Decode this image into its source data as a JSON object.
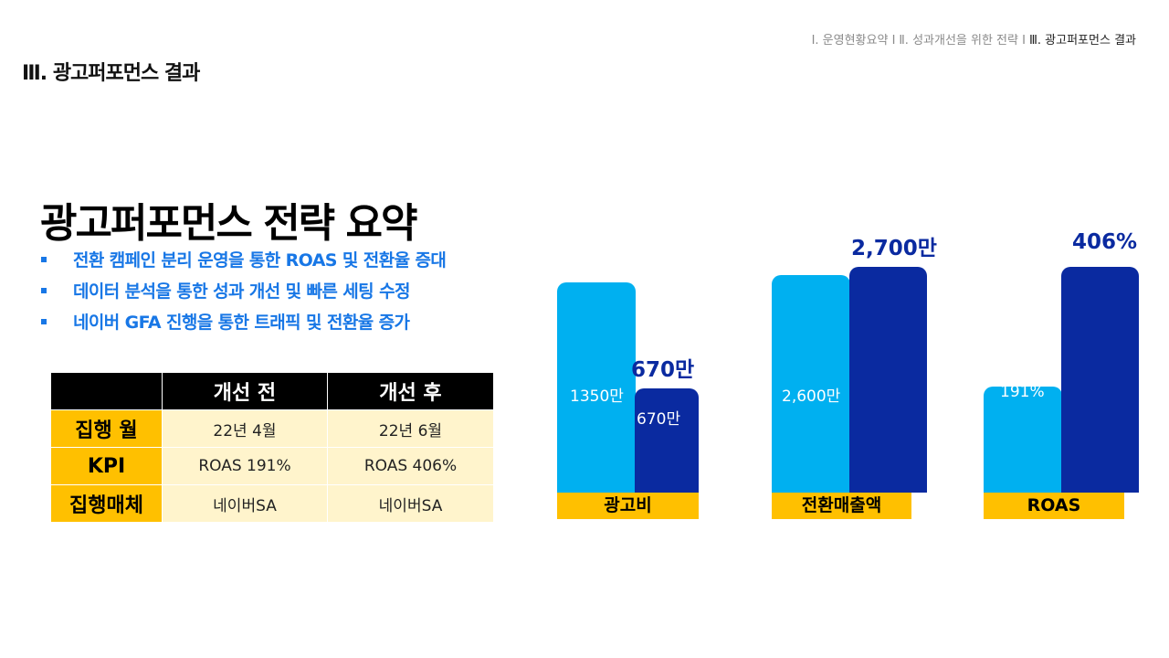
{
  "nav": {
    "items": [
      "Ⅰ. 운영현황요약 Ⅰ",
      "Ⅱ. 성과개선을 위한 전략 Ⅰ",
      "Ⅲ. 광고퍼포먼스 결과"
    ]
  },
  "section_title": "Ⅲ. 광고퍼포먼스 결과",
  "main_title": "광고퍼포먼스 전략 요약",
  "bullets": [
    "전환 캠페인 분리 운영을 통한 ROAS 및 전환율 증대",
    "데이터 분석을 통한 성과 개선 및 빠른 세팅 수정",
    "네이버 GFA 진행을 통한 트래픽 및 전환율 증가"
  ],
  "table": {
    "headers": [
      "",
      "개선 전",
      "개선 후"
    ],
    "rows": [
      {
        "label": "집행 월",
        "before": "22년 4월",
        "after": "22년 6월"
      },
      {
        "label": "KPI",
        "before": "ROAS 191%",
        "after": "ROAS 406%"
      },
      {
        "label": "집행매체",
        "before": "네이버SA",
        "after": "네이버SA"
      }
    ]
  },
  "chart_data": [
    {
      "type": "bar",
      "categories": [
        "광고비"
      ],
      "series": [
        {
          "values": [
            13500000
          ],
          "label": "1350만"
        },
        {
          "values": [
            6700000
          ],
          "label": "670만",
          "top_label": "670만"
        }
      ]
    },
    {
      "type": "bar",
      "categories": [
        "전환매출액"
      ],
      "series": [
        {
          "values": [
            26000000
          ],
          "label": "2,600만"
        },
        {
          "values": [
            27000000
          ],
          "label": "",
          "top_label": "2,700만"
        }
      ]
    },
    {
      "type": "bar",
      "categories": [
        "ROAS"
      ],
      "series": [
        {
          "values": [
            191
          ],
          "label": "191%"
        },
        {
          "values": [
            406
          ],
          "label": "",
          "top_label": "406%"
        }
      ]
    }
  ],
  "colors": {
    "before_bar": "#00b0f0",
    "after_bar": "#0a2aa0",
    "accent_yellow": "#ffc000",
    "table_light": "#fff4cc",
    "bullet_blue": "#1877e6"
  }
}
